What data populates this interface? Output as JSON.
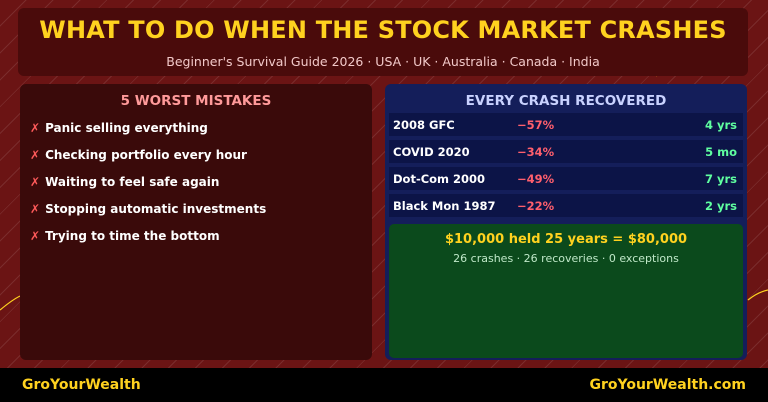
{
  "header": {
    "title": "WHAT TO DO WHEN THE STOCK MARKET CRASHES",
    "subtitle": "Beginner's Survival Guide 2026 · USA · UK · Australia · Canada · India"
  },
  "mistakes": {
    "title": "5 WORST MISTAKES",
    "marker": "✗",
    "items": [
      "Panic selling everything",
      "Checking portfolio every hour",
      "Waiting to feel safe again",
      "Stopping automatic investments",
      "Trying to time the bottom"
    ]
  },
  "crashes": {
    "title": "EVERY CRASH RECOVERED",
    "rows": [
      {
        "name": "2008 GFC",
        "drop": "−57%",
        "recovery": "4 yrs"
      },
      {
        "name": "COVID 2020",
        "drop": "−34%",
        "recovery": "5 mo"
      },
      {
        "name": "Dot-Com 2000",
        "drop": "−49%",
        "recovery": "7 yrs"
      },
      {
        "name": "Black Mon 1987",
        "drop": "−22%",
        "recovery": "2 yrs"
      }
    ]
  },
  "held": {
    "title": "$10,000 held 25 years = $80,000",
    "subtitle": "26 crashes · 26 recoveries · 0 exceptions"
  },
  "footer": {
    "left": "GroYourWealth",
    "right": "GroYourWealth.com"
  },
  "colors": {
    "accent": "#ffd21f",
    "background": "#6b1414",
    "loss": "#ff5f6d",
    "gain": "#5fffa0"
  }
}
